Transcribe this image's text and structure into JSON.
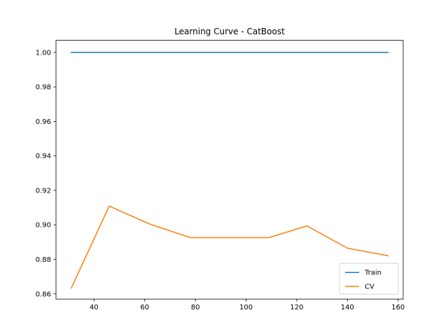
{
  "chart_data": {
    "type": "line",
    "title": "Learning Curve - CatBoost",
    "xlabel": "",
    "ylabel": "",
    "xlim": [
      25,
      162
    ],
    "ylim": [
      0.857,
      1.007
    ],
    "xticks": [
      40,
      60,
      80,
      100,
      120,
      140,
      160
    ],
    "yticks": [
      0.86,
      0.88,
      0.9,
      0.92,
      0.94,
      0.96,
      0.98,
      1.0
    ],
    "ytick_labels": [
      "0.86",
      "0.88",
      "0.90",
      "0.92",
      "0.94",
      "0.96",
      "0.98",
      "1.00"
    ],
    "grid": false,
    "legend_position": "lower-right",
    "series": [
      {
        "name": "Train",
        "color": "#1f77b4",
        "x": [
          31,
          46,
          62,
          78,
          93,
          109,
          124,
          140,
          156
        ],
        "y": [
          1.0,
          1.0,
          1.0,
          1.0,
          1.0,
          1.0,
          1.0,
          1.0,
          1.0
        ]
      },
      {
        "name": "CV",
        "color": "#ff7f0e",
        "x": [
          31,
          46,
          62,
          78,
          93,
          109,
          124,
          140,
          156
        ],
        "y": [
          0.8633,
          0.9109,
          0.9005,
          0.8926,
          0.8926,
          0.8926,
          0.8994,
          0.8865,
          0.8821
        ]
      }
    ]
  }
}
